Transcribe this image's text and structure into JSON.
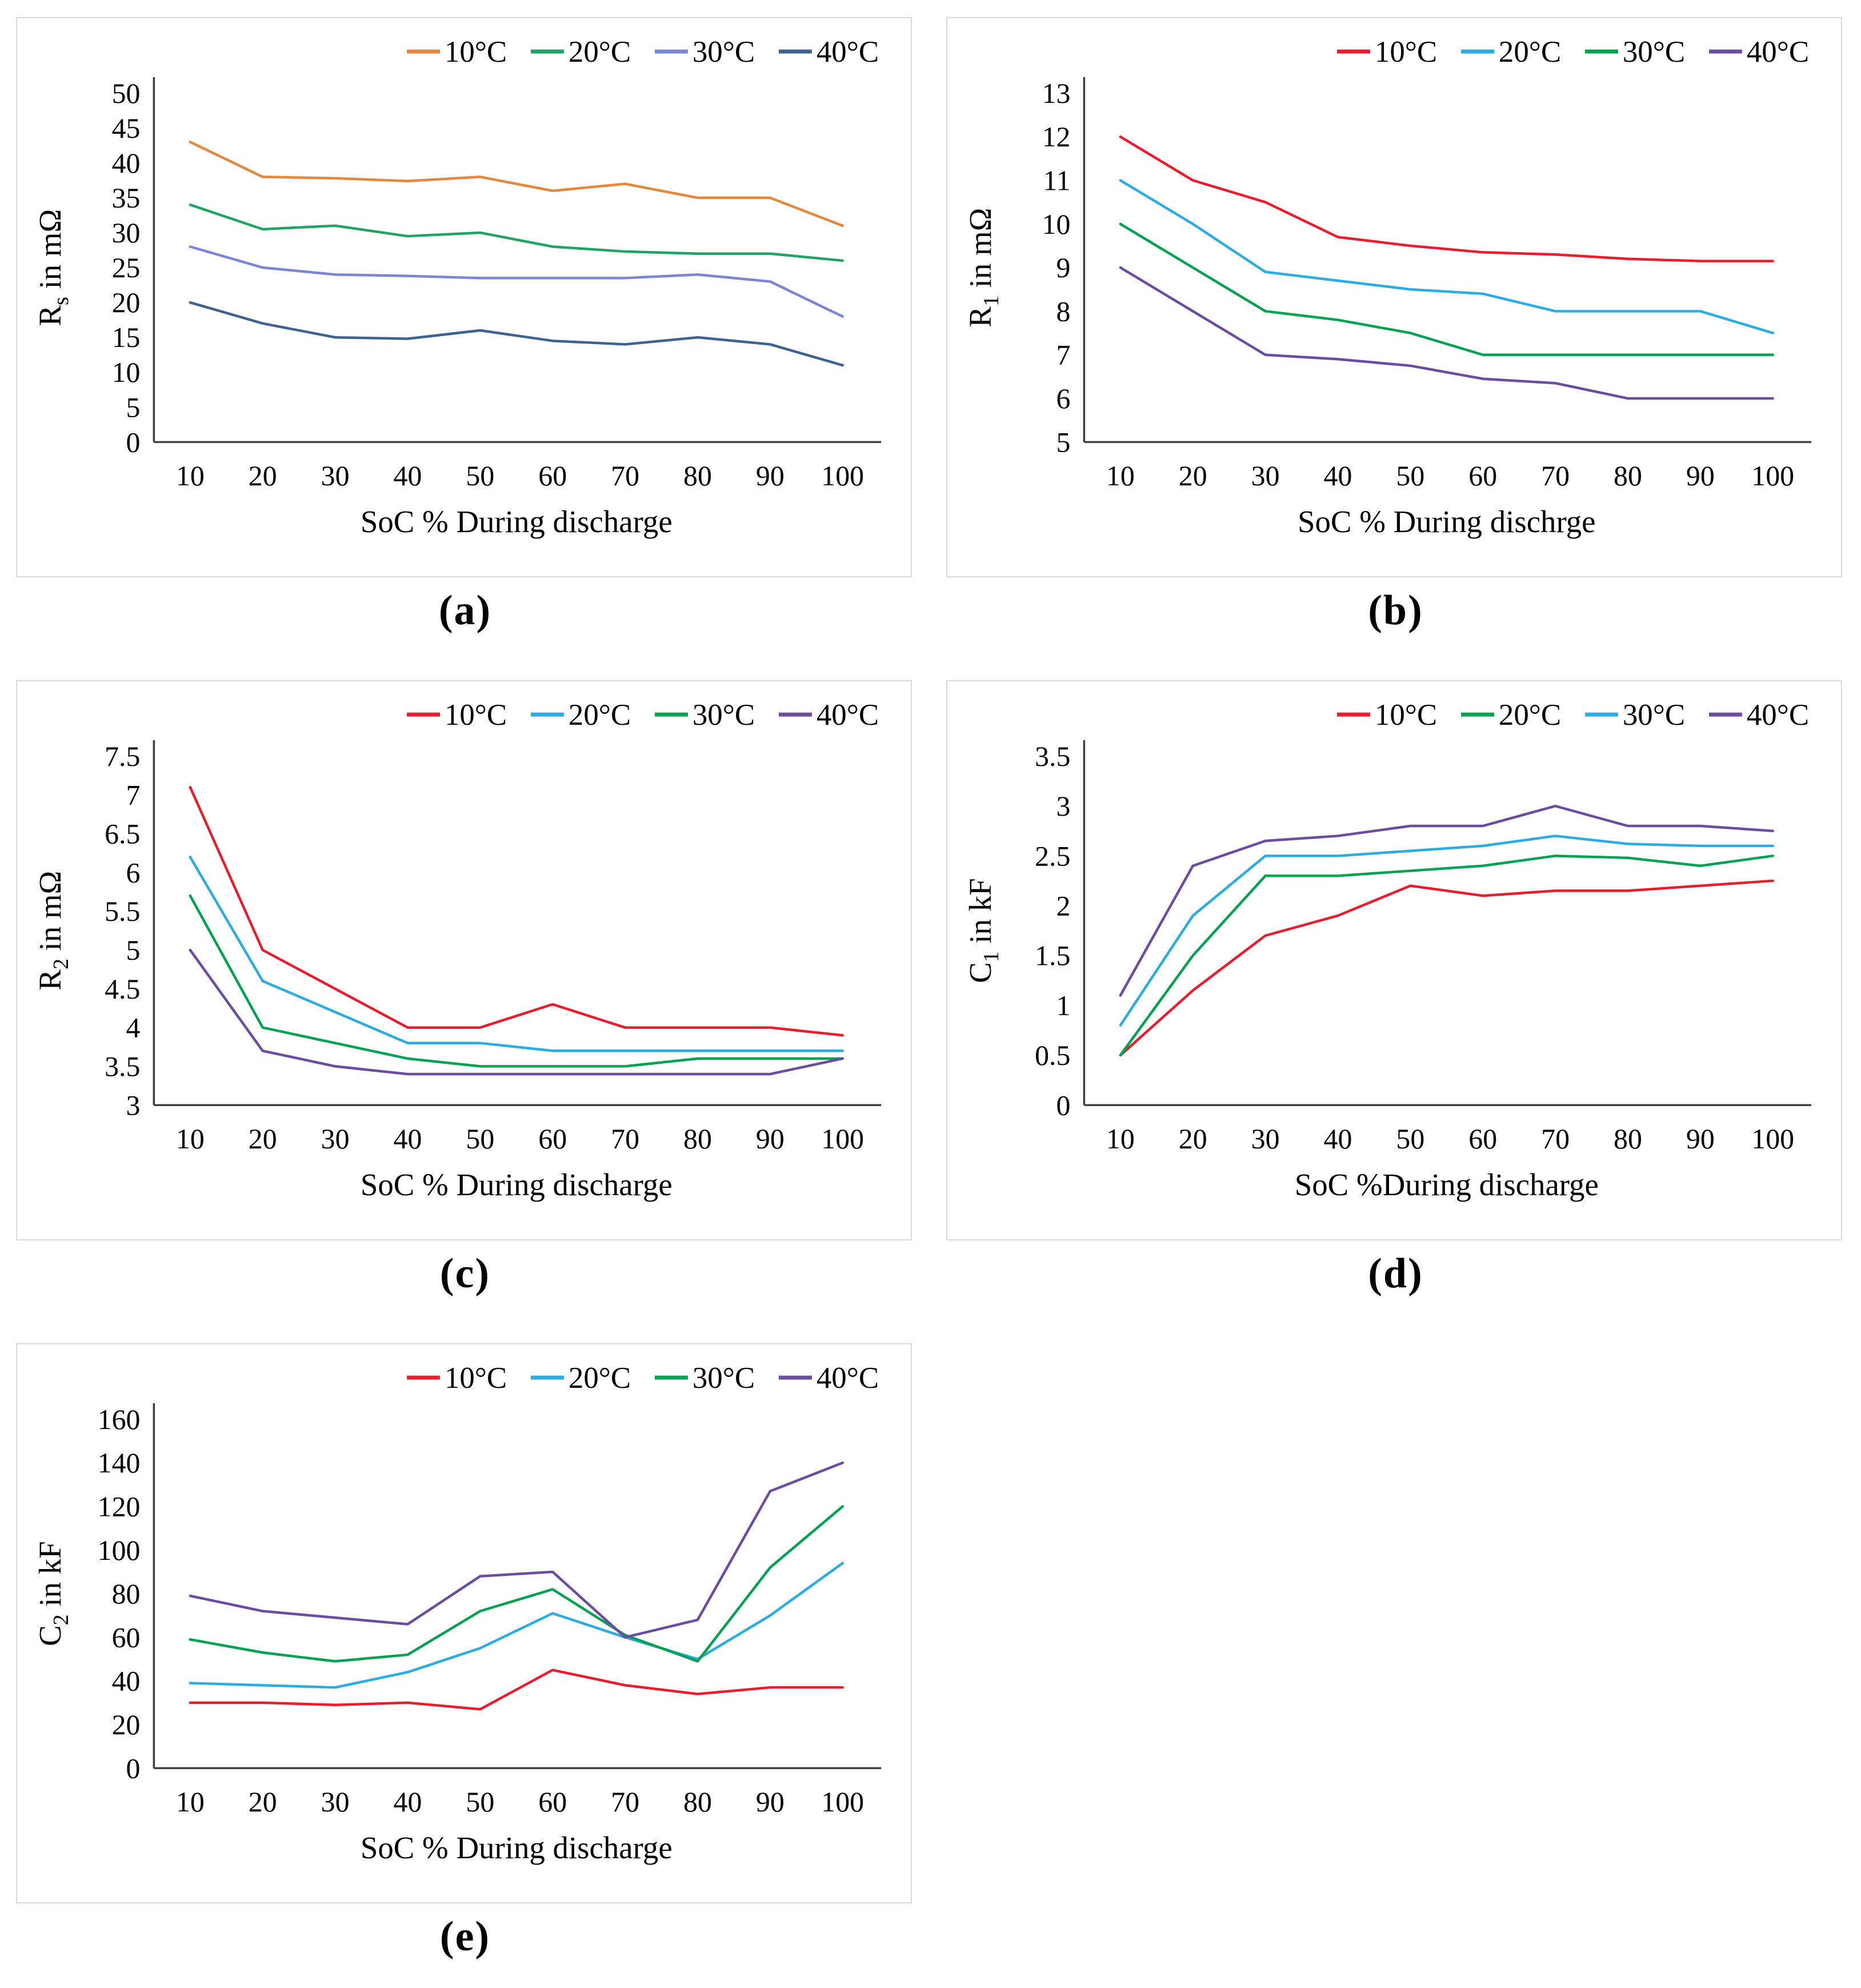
{
  "style": {
    "axis_color": "#3F3F3F",
    "panel_border": "#DADADA",
    "background": "#FFFFFF",
    "text_color": "#000000"
  },
  "chart_data": [
    {
      "id": "a",
      "type": "line",
      "caption": "(a)",
      "y_label": {
        "base": "R",
        "sub": "s",
        "rest": " in mΩ"
      },
      "x_label": "SoC % During discharge",
      "x_ticks": [
        "10",
        "20",
        "30",
        "40",
        "50",
        "60",
        "70",
        "80",
        "90",
        "100"
      ],
      "y_ticks": [
        "0",
        "5",
        "10",
        "15",
        "20",
        "25",
        "30",
        "35",
        "40",
        "45",
        "50"
      ],
      "ylim": [
        0,
        50
      ],
      "grid": false,
      "legend_position": "top-right",
      "series": [
        {
          "name": "10°C",
          "color": "#E6883C",
          "values": [
            43,
            38,
            37.8,
            37.4,
            38,
            36,
            37,
            35,
            35,
            31
          ]
        },
        {
          "name": "20°C",
          "color": "#1FA563",
          "values": [
            34,
            30.5,
            31,
            29.5,
            30,
            28,
            27.3,
            27,
            27,
            26
          ]
        },
        {
          "name": "30°C",
          "color": "#7B85D6",
          "values": [
            28,
            25,
            24,
            23.8,
            23.5,
            23.5,
            23.5,
            24,
            23,
            18
          ]
        },
        {
          "name": "40°C",
          "color": "#3E6390",
          "values": [
            20,
            17,
            15,
            14.8,
            16,
            14.5,
            14,
            15,
            14,
            11
          ]
        }
      ]
    },
    {
      "id": "b",
      "type": "line",
      "caption": "(b)",
      "y_label": {
        "base": "R",
        "sub": "1",
        "rest": " in mΩ"
      },
      "x_label": "SoC % During dischrge",
      "x_ticks": [
        "10",
        "20",
        "30",
        "40",
        "50",
        "60",
        "70",
        "80",
        "90",
        "100"
      ],
      "y_ticks": [
        "5",
        "6",
        "7",
        "8",
        "9",
        "10",
        "11",
        "12",
        "13"
      ],
      "ylim": [
        5,
        13
      ],
      "grid": false,
      "legend_position": "top-right",
      "series": [
        {
          "name": "10°C",
          "color": "#EB1C2C",
          "values": [
            12,
            11,
            10.5,
            9.7,
            9.5,
            9.35,
            9.3,
            9.2,
            9.15,
            9.15
          ]
        },
        {
          "name": "20°C",
          "color": "#29ADE3",
          "values": [
            11,
            10,
            8.9,
            8.7,
            8.5,
            8.4,
            8,
            8,
            8,
            7.5
          ]
        },
        {
          "name": "30°C",
          "color": "#00A351",
          "values": [
            10,
            9,
            8,
            7.8,
            7.5,
            7,
            7,
            7,
            7,
            7
          ]
        },
        {
          "name": "40°C",
          "color": "#6B4CA1",
          "values": [
            9,
            8,
            7,
            6.9,
            6.75,
            6.45,
            6.35,
            6,
            6,
            6
          ]
        }
      ]
    },
    {
      "id": "c",
      "type": "line",
      "caption": "(c)",
      "y_label": {
        "base": "R",
        "sub": "2",
        "rest": " in mΩ"
      },
      "x_label": "SoC % During discharge",
      "x_ticks": [
        "10",
        "20",
        "30",
        "40",
        "50",
        "60",
        "70",
        "80",
        "90",
        "100"
      ],
      "y_ticks": [
        "3",
        "3.5",
        "4",
        "4.5",
        "5",
        "5.5",
        "6",
        "6.5",
        "7",
        "7.5"
      ],
      "ylim": [
        3,
        7.5
      ],
      "grid": false,
      "legend_position": "top-right",
      "series": [
        {
          "name": "10°C",
          "color": "#EB1C2C",
          "values": [
            7.1,
            5,
            4.5,
            4,
            4,
            4.3,
            4,
            4,
            4,
            3.9
          ]
        },
        {
          "name": "20°C",
          "color": "#29ADE3",
          "values": [
            6.2,
            4.6,
            4.2,
            3.8,
            3.8,
            3.7,
            3.7,
            3.7,
            3.7,
            3.7
          ]
        },
        {
          "name": "30°C",
          "color": "#00A351",
          "values": [
            5.7,
            4,
            3.8,
            3.6,
            3.5,
            3.5,
            3.5,
            3.6,
            3.6,
            3.6
          ]
        },
        {
          "name": "40°C",
          "color": "#6B4CA1",
          "values": [
            5,
            3.7,
            3.5,
            3.4,
            3.4,
            3.4,
            3.4,
            3.4,
            3.4,
            3.6
          ]
        }
      ]
    },
    {
      "id": "d",
      "type": "line",
      "caption": "(d)",
      "y_label": {
        "base": "C",
        "sub": "1",
        "rest": " in kF"
      },
      "x_label": "SoC %During discharge",
      "x_ticks": [
        "10",
        "20",
        "30",
        "40",
        "50",
        "60",
        "70",
        "80",
        "90",
        "100"
      ],
      "y_ticks": [
        "0",
        "0.5",
        "1",
        "1.5",
        "2",
        "2.5",
        "3",
        "3.5"
      ],
      "ylim": [
        0,
        3.5
      ],
      "grid": false,
      "legend_position": "top-right",
      "series": [
        {
          "name": "10°C",
          "color": "#EB1C2C",
          "values": [
            0.5,
            1.15,
            1.7,
            1.9,
            2.2,
            2.1,
            2.15,
            2.15,
            2.2,
            2.25
          ]
        },
        {
          "name": "20°C",
          "color": "#00A351",
          "values": [
            0.5,
            1.5,
            2.3,
            2.3,
            2.35,
            2.4,
            2.5,
            2.48,
            2.4,
            2.5
          ]
        },
        {
          "name": "30°C",
          "color": "#29ADE3",
          "values": [
            0.8,
            1.9,
            2.5,
            2.5,
            2.55,
            2.6,
            2.7,
            2.62,
            2.6,
            2.6
          ]
        },
        {
          "name": "40°C",
          "color": "#6B4CA1",
          "values": [
            1.1,
            2.4,
            2.65,
            2.7,
            2.8,
            2.8,
            3,
            2.8,
            2.8,
            2.75
          ]
        }
      ]
    },
    {
      "id": "e",
      "type": "line",
      "caption": "(e)",
      "y_label": {
        "base": "C",
        "sub": "2",
        "rest": " in kF"
      },
      "x_label": "SoC % During discharge",
      "x_ticks": [
        "10",
        "20",
        "30",
        "40",
        "50",
        "60",
        "70",
        "80",
        "90",
        "100"
      ],
      "y_ticks": [
        "0",
        "20",
        "40",
        "60",
        "80",
        "100",
        "120",
        "140",
        "160"
      ],
      "ylim": [
        0,
        160
      ],
      "grid": false,
      "legend_position": "top-right",
      "series": [
        {
          "name": "10°C",
          "color": "#EB1C2C",
          "values": [
            30,
            30,
            29,
            30,
            27,
            45,
            38,
            34,
            37,
            37
          ]
        },
        {
          "name": "20°C",
          "color": "#29ADE3",
          "values": [
            39,
            38,
            37,
            44,
            55,
            71,
            60,
            50,
            70,
            94
          ]
        },
        {
          "name": "30°C",
          "color": "#00A351",
          "values": [
            59,
            53,
            49,
            52,
            72,
            82,
            61,
            49,
            92,
            120
          ]
        },
        {
          "name": "40°C",
          "color": "#6B4CA1",
          "values": [
            79,
            72,
            69,
            66,
            88,
            90,
            60,
            68,
            127,
            140
          ]
        }
      ]
    }
  ]
}
